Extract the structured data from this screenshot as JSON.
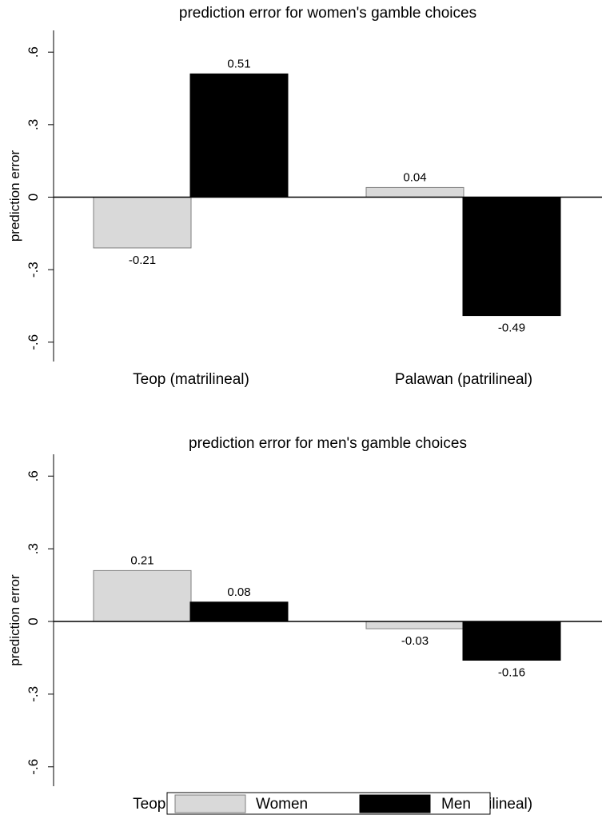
{
  "chart_data": [
    {
      "type": "bar",
      "title": "prediction error for women's gamble choices",
      "ylabel": "prediction error",
      "xlabel": "",
      "categories": [
        "Teop (matrilineal)",
        "Palawan (patrilineal)"
      ],
      "series": [
        {
          "name": "Women",
          "values": [
            -0.21,
            0.04
          ],
          "labels": [
            "-0.21",
            "0.04"
          ]
        },
        {
          "name": "Men",
          "values": [
            0.51,
            -0.49
          ],
          "labels": [
            "0.51",
            "-0.49"
          ]
        }
      ],
      "yticks": [
        -0.6,
        -0.3,
        0,
        0.3,
        0.6
      ],
      "ytick_labels": [
        "-.6",
        "-.3",
        "0",
        ".3",
        ".6"
      ],
      "ylim": [
        -0.68,
        0.69
      ],
      "grid": false
    },
    {
      "type": "bar",
      "title": "prediction error for men's gamble choices",
      "ylabel": "prediction error",
      "xlabel": "",
      "categories": [
        "Teop (matrilineal)",
        "Palawan (patrilineal)"
      ],
      "series": [
        {
          "name": "Women",
          "values": [
            0.21,
            -0.03
          ],
          "labels": [
            "0.21",
            "-0.03"
          ]
        },
        {
          "name": "Men",
          "values": [
            0.08,
            -0.16
          ],
          "labels": [
            "0.08",
            "-0.16"
          ]
        }
      ],
      "yticks": [
        -0.6,
        -0.3,
        0,
        0.3,
        0.6
      ],
      "ytick_labels": [
        "-.6",
        "-.3",
        "0",
        ".3",
        ".6"
      ],
      "ylim": [
        -0.68,
        0.69
      ],
      "grid": false
    }
  ],
  "legend": {
    "position": "bottom",
    "items": [
      {
        "name": "Women",
        "color": "#d9d9d9"
      },
      {
        "name": "Men",
        "color": "#000000"
      }
    ]
  },
  "colors": {
    "Women": "#d9d9d9",
    "Men": "#000000",
    "Women_stroke": "#7f7f7f"
  }
}
